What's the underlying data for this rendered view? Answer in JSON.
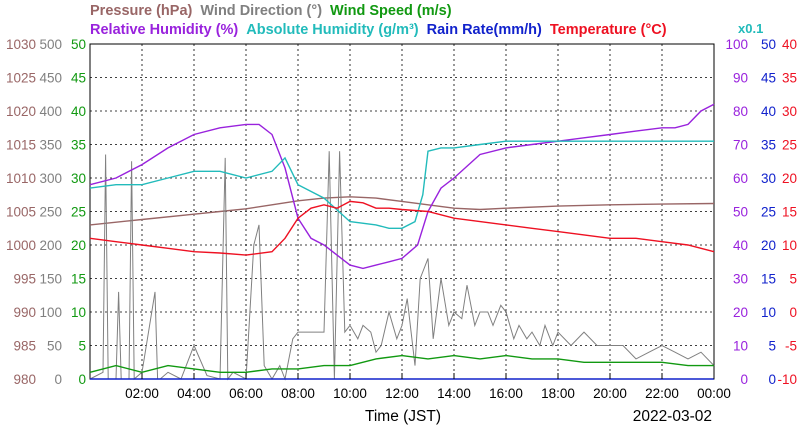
{
  "chart_data": {
    "type": "line",
    "x_unit": "hours (JST)",
    "xlim": [
      0,
      24
    ],
    "xlabel": "Time (JST)",
    "date": "2022-03-02",
    "x_ticks": [
      "02:00",
      "04:00",
      "06:00",
      "08:00",
      "10:00",
      "12:00",
      "14:00",
      "16:00",
      "18:00",
      "20:00",
      "22:00",
      "00:00"
    ],
    "grid": true,
    "legend": [
      {
        "label": "Pressure (hPa)",
        "color": "#996666"
      },
      {
        "label": "Wind Direction (°)",
        "color": "#808080"
      },
      {
        "label": "Wind Speed (m/s)",
        "color": "#119911"
      },
      {
        "label": "Relative Humidity (%)",
        "color": "#9922dd"
      },
      {
        "label": "Absolute Humidity (g/m³)",
        "color": "#22bbbb"
      },
      {
        "label": "Rain Rate(mm/h)",
        "color": "#1122cc"
      },
      {
        "label": "Temperature (°C)",
        "color": "#ee1122"
      }
    ],
    "multiplier_note": "x0.1",
    "axes": {
      "pressure": {
        "ticks": [
          "1030",
          "1025",
          "1020",
          "1015",
          "1010",
          "1005",
          "1000",
          "995",
          "990",
          "985",
          "980"
        ],
        "range": [
          980,
          1030
        ],
        "color": "#996666"
      },
      "wind_direction": {
        "ticks": [
          "500",
          "450",
          "400",
          "350",
          "300",
          "250",
          "200",
          "150",
          "100",
          "50",
          "0"
        ],
        "range": [
          0,
          500
        ],
        "color": "#808080"
      },
      "wind_speed": {
        "ticks": [
          "50",
          "45",
          "40",
          "35",
          "30",
          "25",
          "20",
          "15",
          "10",
          "5",
          "0"
        ],
        "range": [
          0,
          50
        ],
        "color": "#119911"
      },
      "humidity": {
        "ticks": [
          "100",
          "90",
          "80",
          "70",
          "60",
          "50",
          "40",
          "30",
          "20",
          "10",
          "0"
        ],
        "range": [
          0,
          100
        ],
        "color": "#9922dd"
      },
      "rain_rate": {
        "ticks": [
          "50",
          "45",
          "40",
          "35",
          "30",
          "25",
          "20",
          "15",
          "10",
          "5",
          "0"
        ],
        "range": [
          0,
          50
        ],
        "color": "#1122cc"
      },
      "temperature": {
        "ticks": [
          "40",
          "35",
          "30",
          "25",
          "20",
          "15",
          "10",
          "5",
          "0",
          "-5",
          "-10"
        ],
        "range": [
          -10,
          40
        ],
        "color": "#ee1122"
      }
    },
    "series": [
      {
        "name": "Pressure (hPa)",
        "axis": "pressure",
        "color": "#996666",
        "x": [
          0,
          2,
          4,
          5,
          6,
          7,
          8,
          9,
          10,
          11,
          12,
          13,
          14,
          15,
          16,
          18,
          20,
          22,
          24
        ],
        "y": [
          1003.0,
          1003.8,
          1004.6,
          1005.0,
          1005.4,
          1006.0,
          1006.6,
          1007.0,
          1007.2,
          1007.0,
          1006.5,
          1006.0,
          1005.5,
          1005.3,
          1005.5,
          1005.8,
          1006.0,
          1006.1,
          1006.2
        ]
      },
      {
        "name": "Wind Direction (°)",
        "axis": "wind_direction",
        "color": "#808080",
        "x": [
          0,
          0.5,
          0.6,
          0.7,
          1.0,
          1.1,
          1.2,
          1.5,
          1.6,
          1.7,
          2.0,
          2.5,
          2.6,
          2.7,
          3.0,
          3.5,
          4.0,
          4.5,
          5.0,
          5.2,
          5.3,
          5.5,
          6.0,
          6.3,
          6.5,
          6.7,
          7.0,
          7.3,
          7.5,
          7.8,
          8.0,
          8.5,
          9.0,
          9.2,
          9.4,
          9.6,
          9.8,
          10.0,
          10.3,
          10.5,
          10.8,
          11.0,
          11.2,
          11.5,
          11.8,
          12.0,
          12.2,
          12.5,
          12.7,
          13.0,
          13.2,
          13.5,
          13.8,
          14.0,
          14.3,
          14.5,
          14.8,
          15.0,
          15.3,
          15.5,
          15.8,
          16.0,
          16.3,
          16.5,
          16.8,
          17.0,
          17.3,
          17.5,
          17.8,
          18.0,
          18.5,
          19.0,
          19.5,
          20.0,
          20.5,
          21.0,
          21.5,
          22.0,
          22.5,
          23.0,
          23.5,
          24.0
        ],
        "y": [
          0,
          10,
          335,
          0,
          0,
          130,
          0,
          0,
          325,
          0,
          10,
          130,
          0,
          0,
          10,
          0,
          50,
          5,
          0,
          330,
          0,
          10,
          0,
          200,
          230,
          20,
          0,
          20,
          0,
          60,
          70,
          70,
          70,
          340,
          0,
          340,
          70,
          80,
          60,
          80,
          70,
          40,
          50,
          100,
          60,
          80,
          120,
          20,
          150,
          180,
          60,
          150,
          80,
          100,
          90,
          140,
          80,
          100,
          100,
          80,
          110,
          100,
          60,
          80,
          60,
          70,
          50,
          80,
          50,
          70,
          50,
          70,
          50,
          50,
          50,
          30,
          40,
          50,
          40,
          30,
          40,
          20
        ]
      },
      {
        "name": "Wind Speed (m/s)",
        "axis": "wind_speed",
        "color": "#119911",
        "x": [
          0,
          1,
          2,
          3,
          4,
          5,
          6,
          7,
          8,
          9,
          10,
          11,
          12,
          13,
          14,
          15,
          16,
          17,
          18,
          19,
          20,
          21,
          22,
          23,
          24
        ],
        "y": [
          1,
          2,
          1,
          2,
          1.5,
          1,
          1,
          1.5,
          1.5,
          2,
          2,
          3,
          3.5,
          3,
          3.5,
          3,
          3.5,
          3,
          3,
          2.5,
          2.5,
          2.5,
          2.5,
          2,
          2
        ]
      },
      {
        "name": "Relative Humidity (%)",
        "axis": "humidity",
        "color": "#9922dd",
        "x": [
          0,
          1,
          2,
          3,
          4,
          5,
          6,
          6.5,
          7,
          7.5,
          8,
          8.5,
          9,
          9.5,
          10,
          10.5,
          11,
          11.5,
          12,
          12.3,
          12.6,
          13,
          13.5,
          14,
          15,
          16,
          17,
          18,
          19,
          20,
          21,
          22,
          22.5,
          23,
          23.5,
          24
        ],
        "y": [
          58,
          60,
          64,
          69,
          73,
          75,
          76,
          76,
          73,
          63,
          48,
          42,
          40,
          37,
          34,
          33,
          34,
          35,
          36,
          38,
          40,
          50,
          57,
          60,
          67,
          69,
          70,
          71,
          72,
          73,
          74,
          75,
          75,
          76,
          80,
          82
        ]
      },
      {
        "name": "Absolute Humidity (g/m³)",
        "axis": "humidity",
        "color": "#22bbbb",
        "x": [
          0,
          1,
          2,
          3,
          4,
          5,
          6,
          7,
          7.5,
          8,
          9,
          10,
          11,
          11.5,
          12,
          12.5,
          12.8,
          13,
          13.5,
          14,
          15,
          16,
          17,
          18,
          19,
          20,
          21,
          22,
          23,
          24
        ],
        "y": [
          57,
          58,
          58,
          60,
          62,
          62,
          60,
          62,
          66,
          58,
          54,
          47,
          46,
          45,
          45,
          47,
          55,
          68,
          69,
          69,
          70,
          71,
          71,
          71,
          71,
          71,
          71,
          71,
          71,
          71
        ]
      },
      {
        "name": "Rain Rate(mm/h)",
        "axis": "rain_rate",
        "color": "#1122cc",
        "x": [
          0,
          24
        ],
        "y": [
          0,
          0
        ]
      },
      {
        "name": "Temperature (°C)",
        "axis": "temperature",
        "color": "#ee1122",
        "x": [
          0,
          1,
          2,
          3,
          4,
          5,
          6,
          7,
          7.5,
          8,
          8.5,
          9,
          9.5,
          10,
          10.5,
          11,
          11.5,
          12,
          13,
          14,
          15,
          16,
          17,
          18,
          19,
          20,
          21,
          22,
          23,
          24
        ],
        "y": [
          11,
          10.5,
          10,
          9.5,
          9,
          8.8,
          8.5,
          9,
          11,
          14,
          15.5,
          16,
          15.5,
          16.5,
          16.3,
          15.5,
          15.5,
          15.3,
          15,
          14,
          13.5,
          13,
          12.5,
          12,
          11.5,
          11,
          11,
          10.5,
          10,
          9
        ]
      }
    ]
  }
}
